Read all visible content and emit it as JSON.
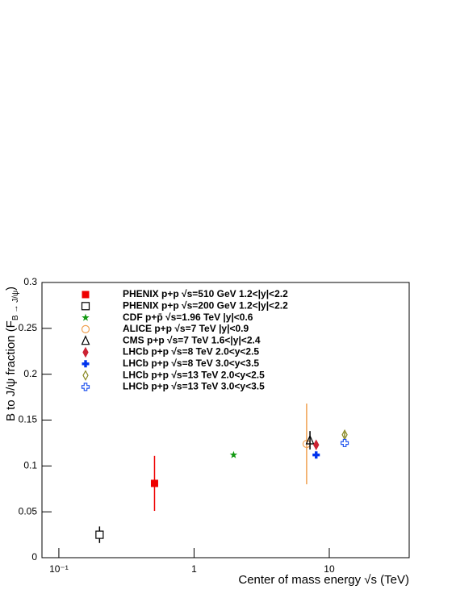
{
  "chart_data": {
    "type": "scatter",
    "xlabel": "Center of mass energy √s (TeV)",
    "ylabel": [
      "B to J/ψ fraction (F",
      "B → J/ψ",
      ")"
    ],
    "xscale": "log",
    "xlim": [
      0.075,
      39
    ],
    "xticks": [
      {
        "value": 0.1,
        "label": "10⁻¹"
      },
      1,
      10
    ],
    "ylim": [
      0,
      0.3
    ],
    "yticks": [
      0,
      0.05,
      0.1,
      0.15,
      0.2,
      0.25,
      0.3
    ],
    "legend": "upper-left",
    "series": [
      {
        "name": "PHENIX p+p  √s=510 GeV 1.2<|y|<2.2",
        "color": "#ee0000",
        "marker": "square-filled",
        "x": [
          0.51
        ],
        "values": [
          0.081
        ],
        "errors": [
          0.03
        ]
      },
      {
        "name": "PHENIX p+p  √s=200 GeV 1.2<|y|<2.2",
        "color": "#000000",
        "marker": "square-open",
        "x": [
          0.2
        ],
        "values": [
          0.025
        ],
        "errors": [
          0.009
        ]
      },
      {
        "name": "CDF p+p̄  √s=1.96 TeV |y|<0.6",
        "color": "#119911",
        "marker": "star",
        "x": [
          1.96
        ],
        "values": [
          0.112
        ],
        "errors": [
          0.002
        ]
      },
      {
        "name": "ALICE p+p  √s=7 TeV  |y|<0.9",
        "color": "#f0a050",
        "marker": "circle-open",
        "x": [
          6.8
        ],
        "values": [
          0.124
        ],
        "errors": [
          0.044
        ]
      },
      {
        "name": "CMS p+p  √s=7 TeV 1.6<|y|<2.4",
        "color": "#000000",
        "marker": "triangle-open",
        "x": [
          7.2
        ],
        "values": [
          0.128
        ],
        "errors": [
          0.01
        ]
      },
      {
        "name": "LHCb p+p √s=8 TeV 2.0<y<2.5",
        "color": "#cc2233",
        "marker": "diamond-filled",
        "x": [
          8
        ],
        "values": [
          0.123
        ],
        "errors": [
          0.003
        ]
      },
      {
        "name": "LHCb p+p √s=8 TeV 3.0<y<3.5",
        "color": "#0033ee",
        "marker": "plus-filled",
        "x": [
          8
        ],
        "values": [
          0.112
        ],
        "errors": [
          0.003
        ]
      },
      {
        "name": "LHCb p+p √s=13 TeV 2.0<y<2.5",
        "color": "#888822",
        "marker": "diamond-open",
        "x": [
          13
        ],
        "values": [
          0.134
        ],
        "errors": [
          0.003
        ]
      },
      {
        "name": "LHCb p+p √s=13 TeV 3.0<y<3.5",
        "color": "#2255ee",
        "marker": "plus-open",
        "x": [
          13
        ],
        "values": [
          0.125
        ],
        "errors": [
          0.003
        ]
      }
    ]
  }
}
